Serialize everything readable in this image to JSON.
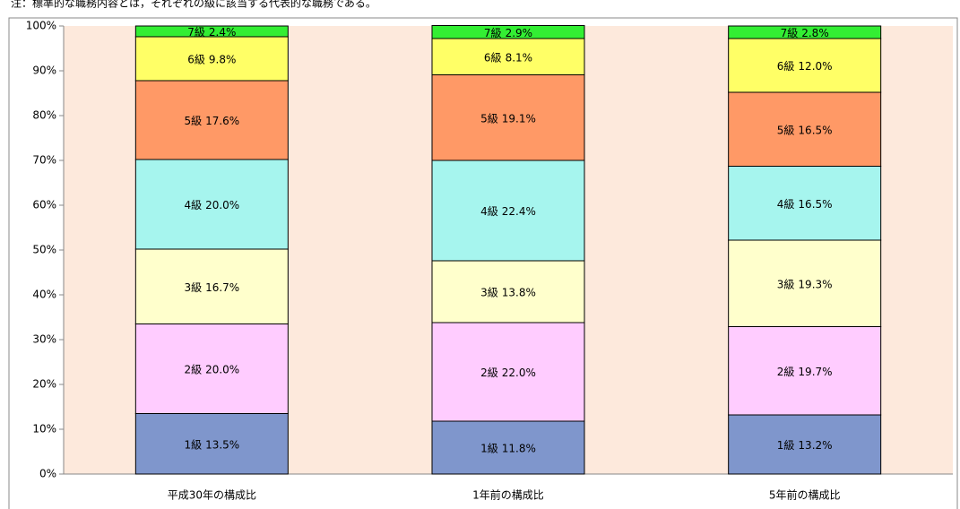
{
  "chart_data": {
    "type": "stacked_bar",
    "note": "注：標準的な職務内容とは，それぞれの級に該当する代表的な職務である。",
    "categories": [
      "平成30年の構成比",
      "1年前の構成比",
      "5年前の構成比"
    ],
    "series": [
      {
        "name": "1級",
        "color": "#7f96cc",
        "values": [
          13.5,
          11.8,
          13.2
        ],
        "value_labels": [
          "13.5%",
          "11.8%",
          "13.2%"
        ]
      },
      {
        "name": "2級",
        "color": "#ffccff",
        "values": [
          20.0,
          22.0,
          19.7
        ],
        "value_labels": [
          "20.0%",
          "22.0%",
          "19.7%"
        ]
      },
      {
        "name": "3級",
        "color": "#ffffcc",
        "values": [
          16.7,
          13.8,
          19.3
        ],
        "value_labels": [
          "16.7%",
          "13.8%",
          "19.3%"
        ]
      },
      {
        "name": "4級",
        "color": "#a6f5ee",
        "values": [
          20.0,
          22.4,
          16.5
        ],
        "value_labels": [
          "20.0%",
          "22.4%",
          "16.5%"
        ]
      },
      {
        "name": "5級",
        "color": "#ff9966",
        "values": [
          17.6,
          19.1,
          16.5
        ],
        "value_labels": [
          "17.6%",
          "19.1%",
          "16.5%"
        ]
      },
      {
        "name": "6級",
        "color": "#ffff66",
        "values": [
          9.8,
          8.1,
          12.0
        ],
        "value_labels": [
          "9.8%",
          "8.1%",
          "12.0%"
        ]
      },
      {
        "name": "7級",
        "color": "#33ee33",
        "values": [
          2.4,
          2.9,
          2.8
        ],
        "value_labels": [
          "2.4%",
          "2.9%",
          "2.8%"
        ]
      }
    ],
    "ylim": [
      0,
      100
    ],
    "yticks": [
      {
        "value": 0,
        "label": "0%"
      },
      {
        "value": 10,
        "label": "10%"
      },
      {
        "value": 20,
        "label": "20%"
      },
      {
        "value": 30,
        "label": "30%"
      },
      {
        "value": 40,
        "label": "40%"
      },
      {
        "value": 50,
        "label": "50%"
      },
      {
        "value": 60,
        "label": "60%"
      },
      {
        "value": 70,
        "label": "70%"
      },
      {
        "value": 80,
        "label": "80%"
      },
      {
        "value": 90,
        "label": "90%"
      },
      {
        "value": 100,
        "label": "100%"
      }
    ],
    "plot_background": "#fde9dc"
  }
}
